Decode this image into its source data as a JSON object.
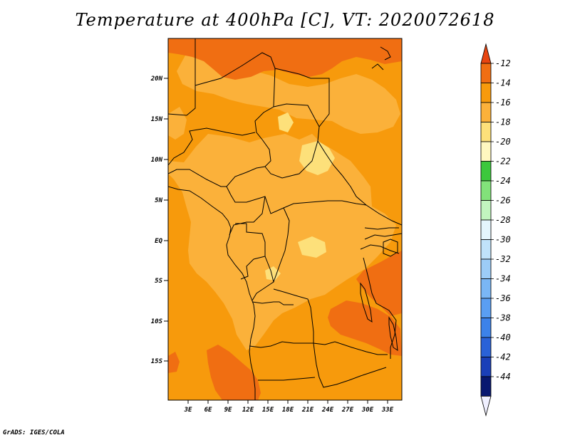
{
  "title": "Temperature at 400hPa [C], VT: 2020072618",
  "credit": "GrADS: IGES/COLA",
  "map": {
    "lat_ticks": [
      "20N",
      "15N",
      "10N",
      "5N",
      "EQ",
      "5S",
      "10S",
      "15S"
    ],
    "lon_ticks": [
      "3E",
      "6E",
      "9E",
      "12E",
      "15E",
      "18E",
      "21E",
      "24E",
      "27E",
      "30E",
      "33E"
    ]
  },
  "colorbar": {
    "labels": [
      "-12",
      "-14",
      "-16",
      "-18",
      "-20",
      "-22",
      "-24",
      "-26",
      "-28",
      "-30",
      "-32",
      "-34",
      "-36",
      "-38",
      "-40",
      "-42",
      "-44"
    ],
    "colors": [
      "#f0f0ff",
      "#081870",
      "#1a3fb8",
      "#2a62d8",
      "#3c82ea",
      "#5a9ef2",
      "#7ab6f5",
      "#9cccf7",
      "#c0e2fa",
      "#e4f5fd",
      "#c2f5bf",
      "#82e27a",
      "#3cc83c",
      "#fff7c0",
      "#fde07a",
      "#fbb13a",
      "#f79a0c",
      "#f06e12",
      "#e84510"
    ]
  },
  "field_colors": {
    "c12": "#f06e12",
    "c14": "#f79a0c",
    "c16": "#fbb13a",
    "c18": "#fde07a"
  }
}
